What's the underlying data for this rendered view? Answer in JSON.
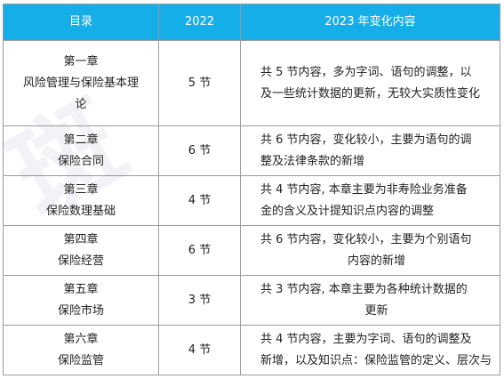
{
  "header": {
    "col1": "目录",
    "col2": "2022",
    "col3": "2023 年变化内容"
  },
  "rows": [
    {
      "chapter": "第一章",
      "title_lines": [
        "风险管理与保险基本理",
        "论"
      ],
      "sections": "5 节",
      "detail": [
        "共 5 节内容，多为字词、语句的调整，以",
        "及一些统计数据的更新，无较大实质性变化"
      ]
    },
    {
      "chapter": "第二章",
      "title_lines": [
        "保险合同"
      ],
      "sections": "6 节",
      "detail": [
        "共 6 节内容，变化较小，主要为语句的调",
        "整及法律条款的新增"
      ]
    },
    {
      "chapter": "第三章",
      "title_lines": [
        "保险数理基础"
      ],
      "sections": "4 节",
      "detail": [
        "共 4 节内容, 本章主要为非寿险业务准备",
        "金的含义及计提知识点内容的调整"
      ]
    },
    {
      "chapter": "第四章",
      "title_lines": [
        "保险经营"
      ],
      "sections": "6 节",
      "detail": [
        "共 6 节内容，变化较小，主要为个别语句",
        "内容的新增"
      ]
    },
    {
      "chapter": "第五章",
      "title_lines": [
        "保险市场"
      ],
      "sections": "3 节",
      "detail": [
        "共 3 节内容, 本章主要为各种统计数据的",
        "更新"
      ]
    },
    {
      "chapter": "第六章",
      "title_lines": [
        "保险监管"
      ],
      "sections": "4 节",
      "detail": [
        "共 4 节内容，主要为字词、语句的调整及",
        "新增，以及知识点：保险监管的定义、层次与"
      ]
    }
  ]
}
